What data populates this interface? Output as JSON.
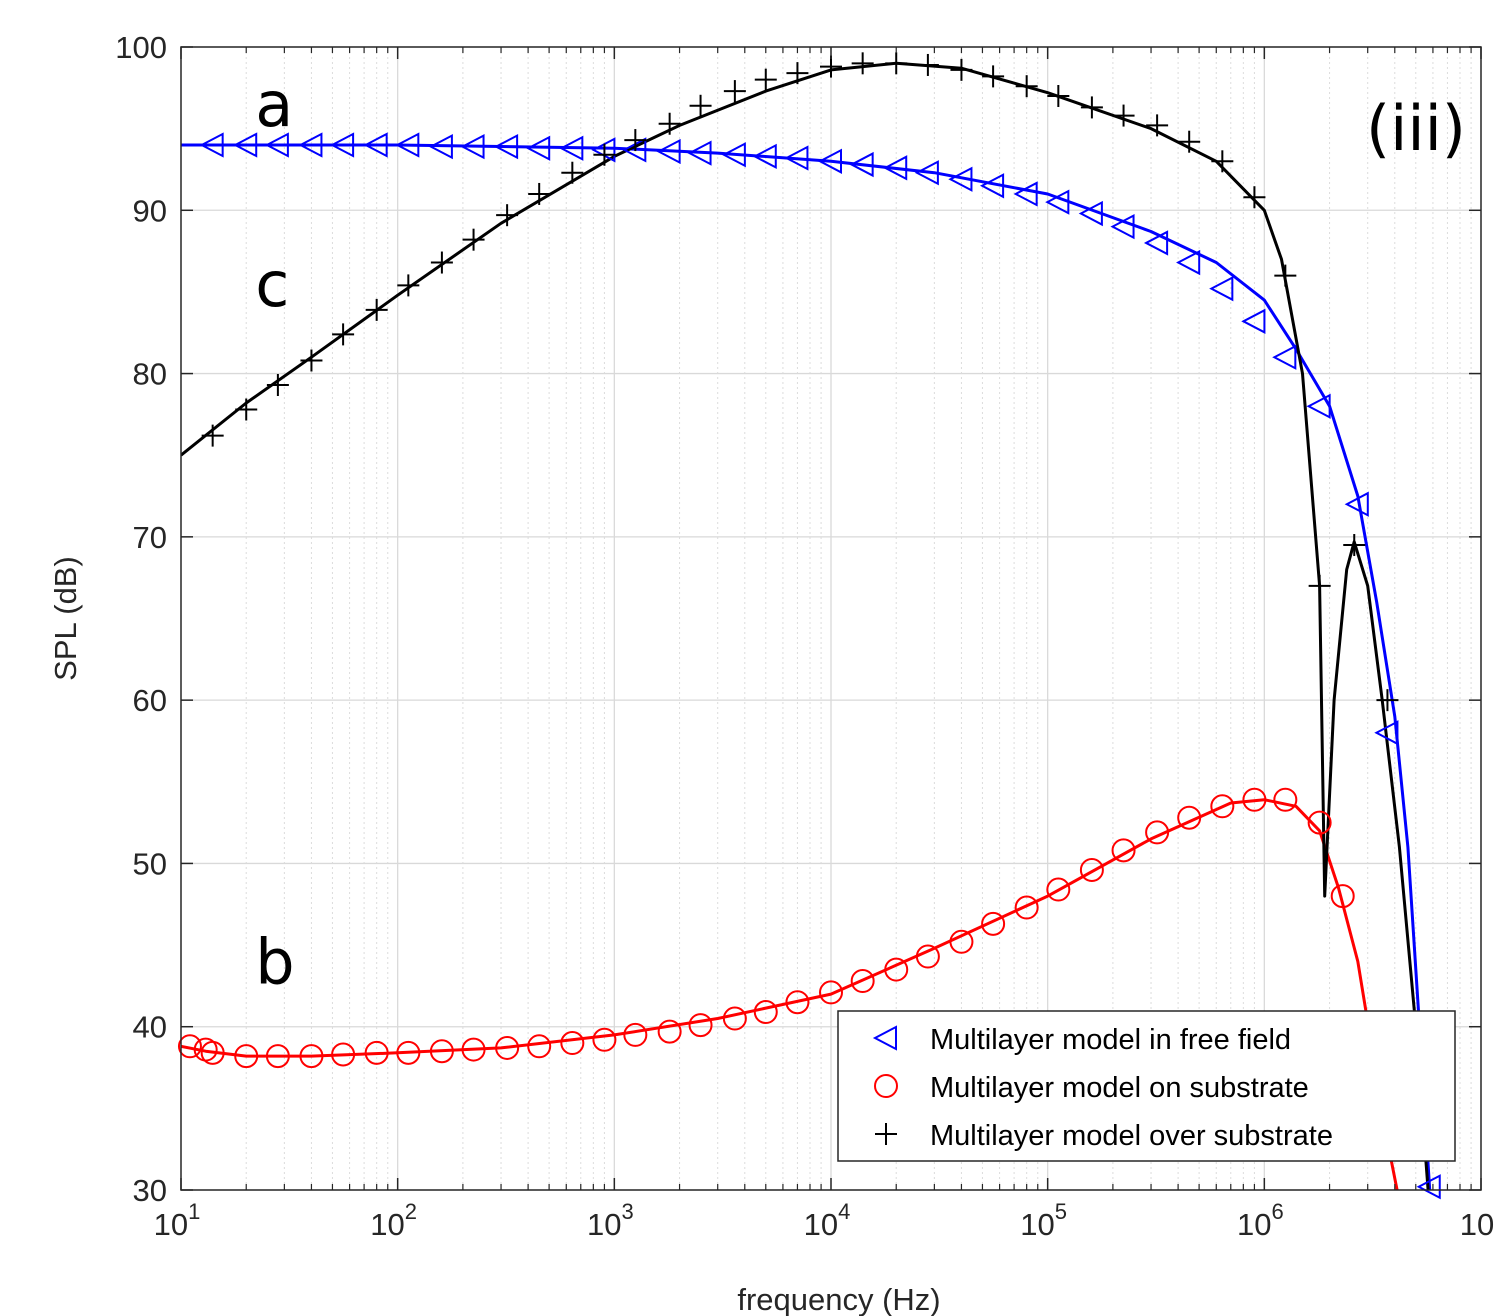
{
  "chart_data": {
    "type": "line",
    "xlabel": "frequency (Hz)",
    "ylabel": "SPL (dB)",
    "xscale": "log",
    "xlim": [
      10,
      10000000
    ],
    "ylim": [
      30,
      100
    ],
    "grid": true,
    "minor_grid": true,
    "x_ticks": [
      {
        "base": "10",
        "exp": "1"
      },
      {
        "base": "10",
        "exp": "2"
      },
      {
        "base": "10",
        "exp": "3"
      },
      {
        "base": "10",
        "exp": "4"
      },
      {
        "base": "10",
        "exp": "5"
      },
      {
        "base": "10",
        "exp": "6"
      },
      {
        "base": "10",
        "exp": ""
      }
    ],
    "y_ticks": [
      "30",
      "40",
      "50",
      "60",
      "70",
      "80",
      "90",
      "100"
    ],
    "legend_position": "bottom-right",
    "panel_label": "(iii)",
    "curve_labels": [
      {
        "text": "a",
        "x": 18,
        "y": 96.5
      },
      {
        "text": "c",
        "x": 18,
        "y": 85.5
      },
      {
        "text": "b",
        "x": 18,
        "y": 44
      }
    ],
    "series": [
      {
        "name": "Multilayer model in free field",
        "color": "#0000ff",
        "marker": "triangle-left",
        "x": [
          10,
          100,
          1000,
          3000,
          10000,
          30000,
          100000,
          300000,
          600000,
          1000000,
          1400000,
          2000000,
          2700000,
          3300000,
          4000000,
          4600000,
          5200000,
          5800000
        ],
        "y": [
          94,
          94,
          93.8,
          93.5,
          93,
          92.3,
          91,
          88.7,
          86.8,
          84.5,
          81.5,
          78,
          72.5,
          66,
          59,
          51,
          40,
          30
        ]
      },
      {
        "name": "Multilayer model on substrate",
        "color": "#ff0000",
        "marker": "circle",
        "x": [
          10,
          13,
          20,
          40,
          100,
          300,
          1000,
          3000,
          10000,
          30000,
          100000,
          300000,
          700000,
          1000000,
          1400000,
          1800000,
          2200000,
          2700000,
          3200000,
          3700000,
          4100000
        ],
        "y": [
          38.8,
          38.5,
          38.2,
          38.2,
          38.4,
          38.7,
          39.5,
          40.5,
          42,
          44.8,
          48,
          51.5,
          53.7,
          53.9,
          53.5,
          52,
          48.5,
          44,
          38,
          33,
          30
        ]
      },
      {
        "name": "Multilayer model over substrate",
        "color": "#000000",
        "marker": "plus",
        "x": [
          10,
          20,
          40,
          100,
          300,
          1000,
          2000,
          5000,
          10000,
          20000,
          40000,
          100000,
          300000,
          600000,
          1000000,
          1200000,
          1500000,
          1800000,
          1900000,
          2100000,
          2400000,
          2600000,
          3000000,
          3500000,
          4200000,
          5000000,
          5700000
        ],
        "y": [
          75,
          78.2,
          81,
          84.8,
          89.2,
          93.3,
          95.2,
          97.3,
          98.6,
          99,
          98.7,
          97.2,
          95,
          93,
          90,
          87,
          80,
          67,
          48,
          60,
          68,
          69.7,
          67,
          60,
          51,
          40,
          30
        ]
      }
    ],
    "marker_points": [
      {
        "series": 0,
        "x": [
          14,
          20,
          28,
          40,
          56,
          80,
          112,
          160,
          224,
          320,
          450,
          640,
          900,
          1250,
          1800,
          2500,
          3600,
          5000,
          7000,
          10000,
          14000,
          20000,
          28000,
          40000,
          56000,
          80000,
          112000,
          160000,
          224000,
          320000,
          450000,
          640000,
          900000,
          1250000,
          1800000,
          2700000,
          3700000,
          5800000
        ],
        "y": [
          94,
          94,
          94,
          94,
          94,
          94,
          94,
          93.9,
          93.9,
          93.9,
          93.8,
          93.8,
          93.7,
          93.7,
          93.6,
          93.5,
          93.4,
          93.3,
          93.2,
          93.0,
          92.8,
          92.6,
          92.3,
          91.9,
          91.5,
          91.0,
          90.5,
          89.8,
          89.0,
          88.0,
          86.8,
          85.2,
          83.2,
          81.0,
          78.0,
          72.0,
          58.0,
          30.2
        ]
      },
      {
        "series": 1,
        "x": [
          11,
          13,
          14,
          20,
          28,
          40,
          56,
          80,
          112,
          160,
          224,
          320,
          450,
          640,
          900,
          1250,
          1800,
          2500,
          3600,
          5000,
          7000,
          10000,
          14000,
          20000,
          28000,
          40000,
          56000,
          80000,
          112000,
          160000,
          224000,
          320000,
          450000,
          640000,
          900000,
          1250000,
          1800000,
          2300000
        ],
        "y": [
          38.8,
          38.6,
          38.4,
          38.2,
          38.2,
          38.2,
          38.3,
          38.4,
          38.4,
          38.5,
          38.6,
          38.7,
          38.8,
          39.0,
          39.2,
          39.5,
          39.7,
          40.1,
          40.5,
          40.9,
          41.5,
          42.1,
          42.8,
          43.5,
          44.3,
          45.2,
          46.3,
          47.3,
          48.4,
          49.6,
          50.8,
          51.9,
          52.8,
          53.5,
          53.9,
          53.9,
          52.5,
          48
        ]
      },
      {
        "series": 2,
        "x": [
          14,
          20,
          28,
          40,
          56,
          80,
          112,
          160,
          224,
          320,
          450,
          640,
          900,
          1250,
          1800,
          2500,
          3600,
          5000,
          7000,
          10000,
          14000,
          20000,
          28000,
          40000,
          56000,
          80000,
          112000,
          160000,
          224000,
          320000,
          450000,
          640000,
          900000,
          1250000,
          1800000,
          2600000,
          3700000
        ],
        "y": [
          76.2,
          77.8,
          79.3,
          80.8,
          82.4,
          83.9,
          85.4,
          86.8,
          88.2,
          89.7,
          91.0,
          92.3,
          93.4,
          94.3,
          95.3,
          96.4,
          97.3,
          98.0,
          98.4,
          98.8,
          99.0,
          99.0,
          98.9,
          98.6,
          98.2,
          97.6,
          97.0,
          96.3,
          95.8,
          95.2,
          94.2,
          93.0,
          90.8,
          86.0,
          67.0,
          69.5,
          60.0
        ]
      }
    ]
  }
}
